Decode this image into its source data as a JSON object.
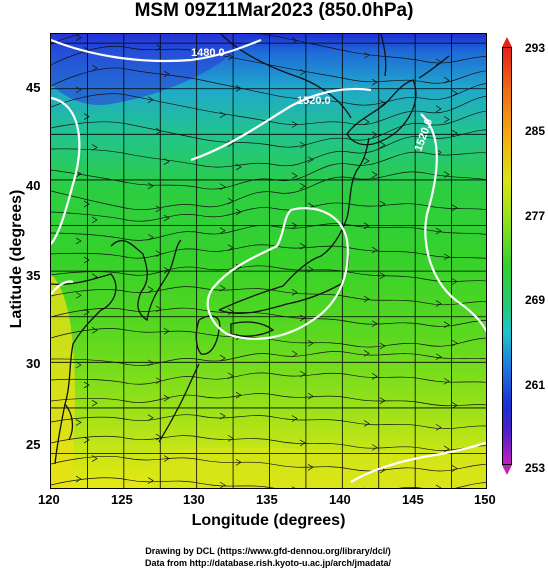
{
  "title": "MSM 09Z11Mar2023 (850.0hPa)",
  "xaxis": {
    "label": "Longitude (degrees)",
    "ticks": [
      "120",
      "125",
      "130",
      "135",
      "140",
      "145",
      "150"
    ],
    "range": [
      120,
      150
    ]
  },
  "yaxis": {
    "label": "Latitude  (degrees)",
    "ticks": [
      "25",
      "30",
      "35",
      "40",
      "45"
    ],
    "range": [
      23,
      48
    ]
  },
  "colorbar": {
    "ticks": [
      "293",
      "285",
      "277",
      "269",
      "261",
      "253"
    ],
    "range": [
      253,
      293
    ]
  },
  "contour_labels": [
    "1480.0",
    "1520.0",
    "1520.0"
  ],
  "credits": {
    "line1": "Drawing by DCL (https://www.gfd-dennou.org/library/dcl/)",
    "line2": "Data from http://database.rish.kyoto-u.ac.jp/arch/jmadata/"
  },
  "colors": {
    "contour": "#ffffff",
    "grid": "#000000",
    "coast": "#000000"
  }
}
